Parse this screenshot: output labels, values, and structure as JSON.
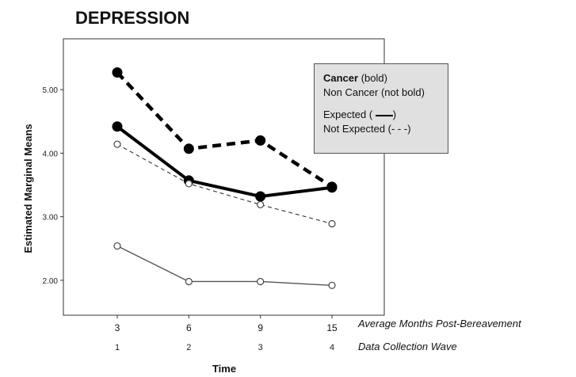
{
  "chart_data": {
    "type": "line",
    "title": "DEPRESSION",
    "xlabel": "Time",
    "ylabel": "Estimated Marginal Means",
    "x": [
      1,
      2,
      3,
      4
    ],
    "x_tick_labels": [
      "1",
      "2",
      "3",
      "4"
    ],
    "x_tick_labels_secondary": [
      "3",
      "6",
      "9",
      "15"
    ],
    "x_secondary_caption": "Average Months Post-Bereavement",
    "x_primary_caption": "Data Collection Wave",
    "y_ticks": [
      "2.00",
      "3.00",
      "4.00",
      "5.00"
    ],
    "ylim": [
      1.45,
      5.8
    ],
    "grid": false,
    "legend_placement": "top-right",
    "series": [
      {
        "values": [
          5.27,
          4.07,
          4.2,
          3.47
        ],
        "line": "dashed-bold",
        "marker": "filled"
      },
      {
        "values": [
          4.42,
          3.57,
          3.32,
          3.46
        ],
        "line": "solid-bold",
        "marker": "filled"
      },
      {
        "values": [
          4.14,
          3.52,
          3.19,
          2.89
        ],
        "line": "dashed-thin",
        "marker": "open"
      },
      {
        "values": [
          2.54,
          1.98,
          1.98,
          1.92
        ],
        "line": "solid-thin",
        "marker": "open"
      }
    ]
  },
  "legend": {
    "line1_bold": "Cancer",
    "line1_rest": " (bold)",
    "line2": "Non Cancer (not bold)",
    "line3_pre": "Expected ( ",
    "line3_post": ")",
    "line4": "Not Expected (- - -)"
  }
}
